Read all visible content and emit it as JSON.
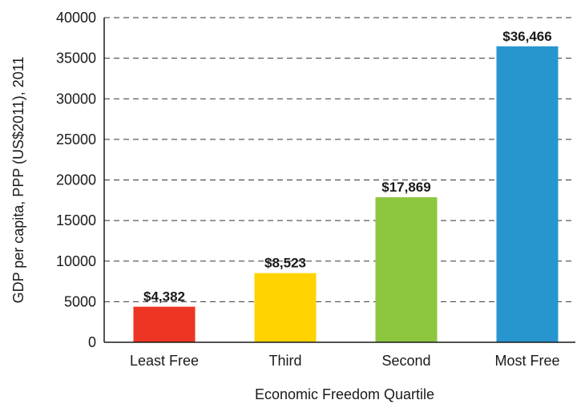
{
  "chart_data": {
    "type": "bar",
    "xlabel": "Economic Freedom Quartile",
    "ylabel": "GDP per capita, PPP (US$2011), 2011",
    "ylim": [
      0,
      40000
    ],
    "yticks": [
      0,
      5000,
      10000,
      15000,
      20000,
      25000,
      30000,
      35000,
      40000
    ],
    "grid": true,
    "categories": [
      "Least Free",
      "Third",
      "Second",
      "Most Free"
    ],
    "values": [
      4382,
      8523,
      17869,
      36466
    ],
    "data_labels": [
      "$4,382",
      "$8,523",
      "$17,869",
      "$36,466"
    ],
    "colors": [
      "#ee3524",
      "#ffd200",
      "#8dc63f",
      "#2796cf"
    ]
  }
}
